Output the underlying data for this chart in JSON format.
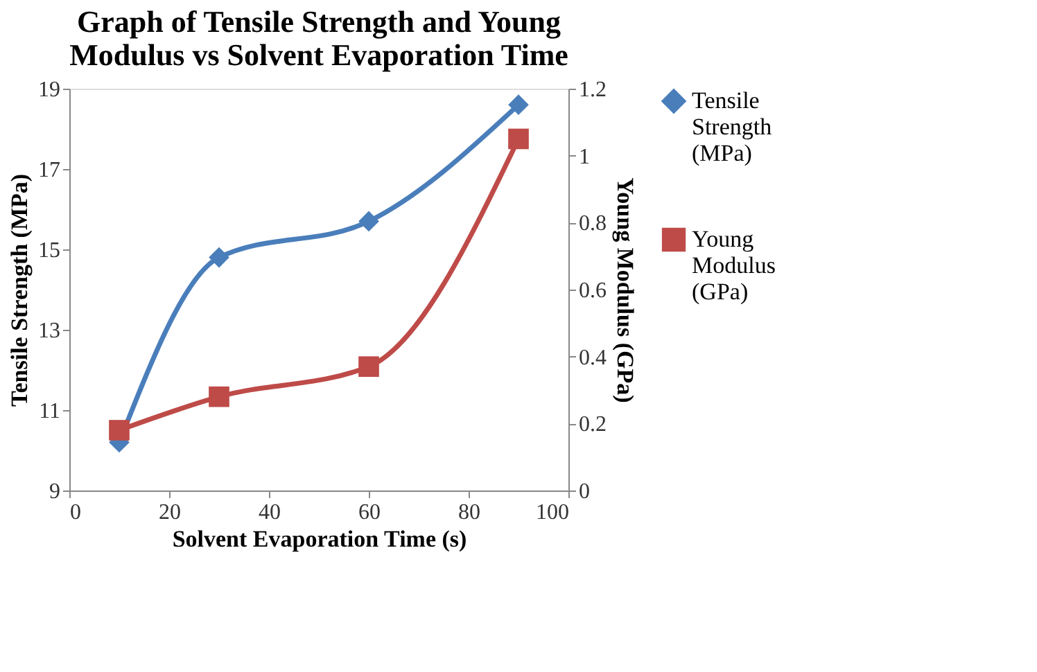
{
  "chart_data": {
    "type": "line",
    "title": "Graph of Tensile Strength and Young Modulus vs Solvent Evaporation Time",
    "xlabel": "Solvent Evaporation Time (s)",
    "ylabel": "Tensile Strength (MPa)",
    "y2label": "Young Modulus  (GPa)",
    "x": [
      10,
      30,
      60,
      90
    ],
    "series": [
      {
        "name": "Tensile Strength (MPa)",
        "color": "#4a7ebb",
        "values": [
          10.2,
          14.8,
          15.7,
          18.6
        ],
        "marker": "diamond"
      },
      {
        "name": "Young Modulus (GPa)",
        "color": "#be4b48",
        "values": [
          0.18,
          0.28,
          0.37,
          1.05
        ],
        "marker": "square",
        "axis": "y2"
      }
    ],
    "xlim": [
      0,
      100
    ],
    "xticks": [
      0,
      20,
      40,
      60,
      80,
      100
    ],
    "ylim": [
      9,
      19
    ],
    "yticks": [
      9,
      11,
      13,
      15,
      17,
      19
    ],
    "y2lim": [
      0,
      1.2
    ],
    "y2ticks": [
      0,
      0.2,
      0.4,
      0.6,
      0.8,
      1,
      1.2
    ],
    "grid": false,
    "legend": "right"
  }
}
